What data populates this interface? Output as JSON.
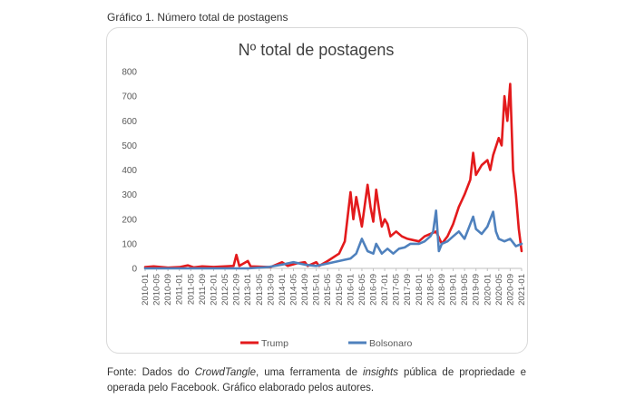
{
  "caption": "Gráfico 1. Número total de postagens",
  "source": {
    "prefix": "Fonte: Dados do ",
    "crowdtangle": "CrowdTangle",
    "middle": ", uma ferramenta de ",
    "insights": "insights",
    "suffix": " pública de propriedade e operada pelo Facebook. Gráfico elaborado pelos autores."
  },
  "colors": {
    "trump": "#e31a1c",
    "bolsonaro": "#4f81bd",
    "axis": "#bfbfbf",
    "frame": "#d9d9d9"
  },
  "chart_data": {
    "type": "line",
    "title": "Nº total de postagens",
    "xlabel": "",
    "ylabel": "",
    "ylim": [
      0,
      800
    ],
    "yticks": [
      0,
      100,
      200,
      300,
      400,
      500,
      600,
      700,
      800
    ],
    "grid": false,
    "legend_position": "bottom",
    "x_start": "2010-01",
    "x_end": "2021-01",
    "x_tick_labels": [
      "2010-01",
      "2010-05",
      "2010-09",
      "2011-01",
      "2011-05",
      "2011-09",
      "2012-01",
      "2012-05",
      "2012-09",
      "2013-01",
      "2013-05",
      "2013-09",
      "2014-01",
      "2014-05",
      "2014-09",
      "2015-01",
      "2015-05",
      "2015-09",
      "2016-01",
      "2016-05",
      "2016-09",
      "2017-01",
      "2017-05",
      "2017-09",
      "2018-01",
      "2018-05",
      "2018-09",
      "2019-01",
      "2019-05",
      "2019-09",
      "2020-01",
      "2020-05",
      "2020-09",
      "2021-01"
    ],
    "series": [
      {
        "name": "Trump",
        "points": [
          [
            "2010-01",
            5
          ],
          [
            "2010-04",
            8
          ],
          [
            "2010-09",
            3
          ],
          [
            "2011-01",
            5
          ],
          [
            "2011-04",
            12
          ],
          [
            "2011-06",
            4
          ],
          [
            "2011-09",
            8
          ],
          [
            "2012-01",
            6
          ],
          [
            "2012-05",
            8
          ],
          [
            "2012-08",
            10
          ],
          [
            "2012-09",
            55
          ],
          [
            "2012-10",
            10
          ],
          [
            "2013-01",
            30
          ],
          [
            "2013-02",
            8
          ],
          [
            "2013-09",
            5
          ],
          [
            "2014-01",
            25
          ],
          [
            "2014-03",
            10
          ],
          [
            "2014-06",
            20
          ],
          [
            "2014-09",
            25
          ],
          [
            "2014-10",
            10
          ],
          [
            "2015-01",
            25
          ],
          [
            "2015-02",
            10
          ],
          [
            "2015-05",
            30
          ],
          [
            "2015-09",
            60
          ],
          [
            "2015-11",
            110
          ],
          [
            "2016-01",
            310
          ],
          [
            "2016-02",
            200
          ],
          [
            "2016-03",
            290
          ],
          [
            "2016-04",
            230
          ],
          [
            "2016-05",
            170
          ],
          [
            "2016-07",
            340
          ],
          [
            "2016-08",
            250
          ],
          [
            "2016-09",
            190
          ],
          [
            "2016-10",
            320
          ],
          [
            "2016-11",
            240
          ],
          [
            "2016-12",
            170
          ],
          [
            "2017-01",
            200
          ],
          [
            "2017-02",
            180
          ],
          [
            "2017-03",
            130
          ],
          [
            "2017-05",
            150
          ],
          [
            "2017-07",
            130
          ],
          [
            "2017-09",
            120
          ],
          [
            "2017-11",
            115
          ],
          [
            "2018-01",
            110
          ],
          [
            "2018-03",
            130
          ],
          [
            "2018-05",
            140
          ],
          [
            "2018-07",
            150
          ],
          [
            "2018-09",
            100
          ],
          [
            "2018-11",
            130
          ],
          [
            "2019-01",
            180
          ],
          [
            "2019-03",
            250
          ],
          [
            "2019-05",
            300
          ],
          [
            "2019-07",
            360
          ],
          [
            "2019-08",
            470
          ],
          [
            "2019-09",
            380
          ],
          [
            "2019-11",
            420
          ],
          [
            "2020-01",
            440
          ],
          [
            "2020-02",
            400
          ],
          [
            "2020-03",
            460
          ],
          [
            "2020-05",
            530
          ],
          [
            "2020-06",
            500
          ],
          [
            "2020-07",
            700
          ],
          [
            "2020-08",
            600
          ],
          [
            "2020-09",
            750
          ],
          [
            "2020-10",
            400
          ],
          [
            "2020-11",
            300
          ],
          [
            "2020-12",
            160
          ],
          [
            "2021-01",
            70
          ]
        ]
      },
      {
        "name": "Bolsonaro",
        "points": [
          [
            "2010-01",
            0
          ],
          [
            "2011-01",
            0
          ],
          [
            "2012-01",
            0
          ],
          [
            "2013-01",
            0
          ],
          [
            "2013-08",
            5
          ],
          [
            "2014-01",
            15
          ],
          [
            "2014-05",
            25
          ],
          [
            "2014-09",
            15
          ],
          [
            "2015-01",
            10
          ],
          [
            "2015-05",
            20
          ],
          [
            "2015-09",
            30
          ],
          [
            "2016-01",
            40
          ],
          [
            "2016-03",
            60
          ],
          [
            "2016-05",
            120
          ],
          [
            "2016-07",
            70
          ],
          [
            "2016-09",
            60
          ],
          [
            "2016-10",
            100
          ],
          [
            "2016-12",
            60
          ],
          [
            "2017-02",
            80
          ],
          [
            "2017-04",
            60
          ],
          [
            "2017-06",
            80
          ],
          [
            "2017-08",
            85
          ],
          [
            "2017-10",
            100
          ],
          [
            "2018-01",
            100
          ],
          [
            "2018-03",
            110
          ],
          [
            "2018-05",
            130
          ],
          [
            "2018-06",
            150
          ],
          [
            "2018-07",
            235
          ],
          [
            "2018-08",
            70
          ],
          [
            "2018-09",
            100
          ],
          [
            "2018-11",
            110
          ],
          [
            "2019-01",
            130
          ],
          [
            "2019-03",
            150
          ],
          [
            "2019-05",
            120
          ],
          [
            "2019-07",
            180
          ],
          [
            "2019-08",
            210
          ],
          [
            "2019-09",
            160
          ],
          [
            "2019-11",
            140
          ],
          [
            "2020-01",
            170
          ],
          [
            "2020-03",
            230
          ],
          [
            "2020-04",
            150
          ],
          [
            "2020-05",
            120
          ],
          [
            "2020-07",
            110
          ],
          [
            "2020-09",
            120
          ],
          [
            "2020-11",
            90
          ],
          [
            "2021-01",
            100
          ]
        ]
      }
    ]
  }
}
